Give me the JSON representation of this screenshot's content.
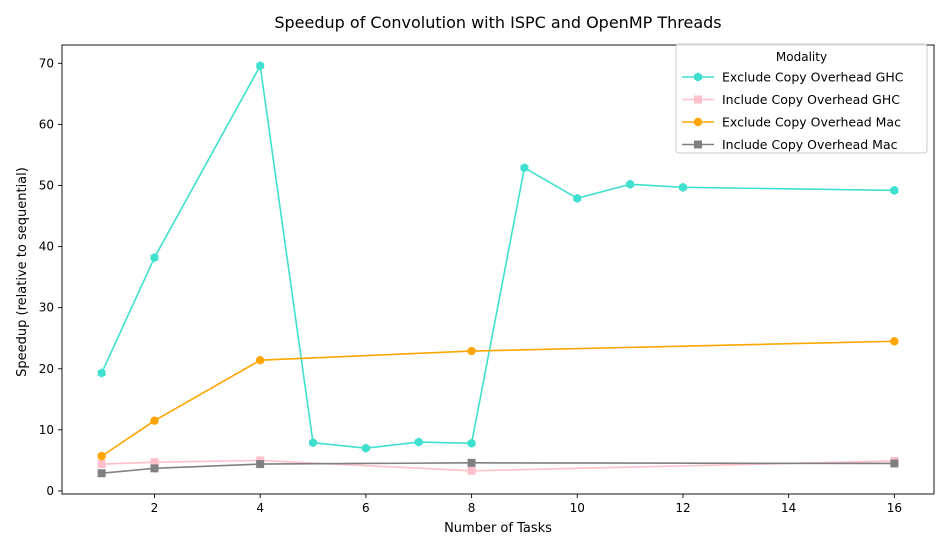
{
  "chart_data": {
    "type": "line",
    "title": "Speedup of Convolution with ISPC and OpenMP Threads",
    "xlabel": "Number of Tasks",
    "ylabel": "Speedup (relative to sequential)",
    "xlim": [
      0.25,
      16.75
    ],
    "ylim": [
      -0.5,
      73
    ],
    "xticks": [
      2,
      4,
      6,
      8,
      10,
      12,
      14,
      16
    ],
    "yticks": [
      0,
      10,
      20,
      30,
      40,
      50,
      60,
      70
    ],
    "grid": false,
    "legend": {
      "title": "Modality",
      "placement": "top-right"
    },
    "series": [
      {
        "name": "Exclude Copy Overhead GHC",
        "color": "#40e0d0",
        "marker": "hexagon",
        "x": [
          1,
          2,
          4,
          5,
          6,
          7,
          8,
          9,
          10,
          11,
          12,
          16
        ],
        "values": [
          19.3,
          38.2,
          69.6,
          7.9,
          7.0,
          8.0,
          7.8,
          52.9,
          47.9,
          50.2,
          49.7,
          49.2
        ]
      },
      {
        "name": "Include Copy Overhead GHC",
        "color": "#ffc0cb",
        "marker": "square",
        "x": [
          1,
          2,
          4,
          8,
          16
        ],
        "values": [
          4.4,
          4.7,
          5.0,
          3.3,
          4.9
        ]
      },
      {
        "name": "Exclude Copy Overhead Mac",
        "color": "#ffa500",
        "marker": "circle",
        "x": [
          1,
          2,
          4,
          8,
          16
        ],
        "values": [
          5.7,
          11.5,
          21.4,
          22.9,
          24.5
        ]
      },
      {
        "name": "Include Copy Overhead Mac",
        "color": "#808080",
        "marker": "square",
        "x": [
          1,
          2,
          4,
          8,
          16
        ],
        "values": [
          2.9,
          3.7,
          4.4,
          4.6,
          4.5
        ]
      }
    ]
  }
}
